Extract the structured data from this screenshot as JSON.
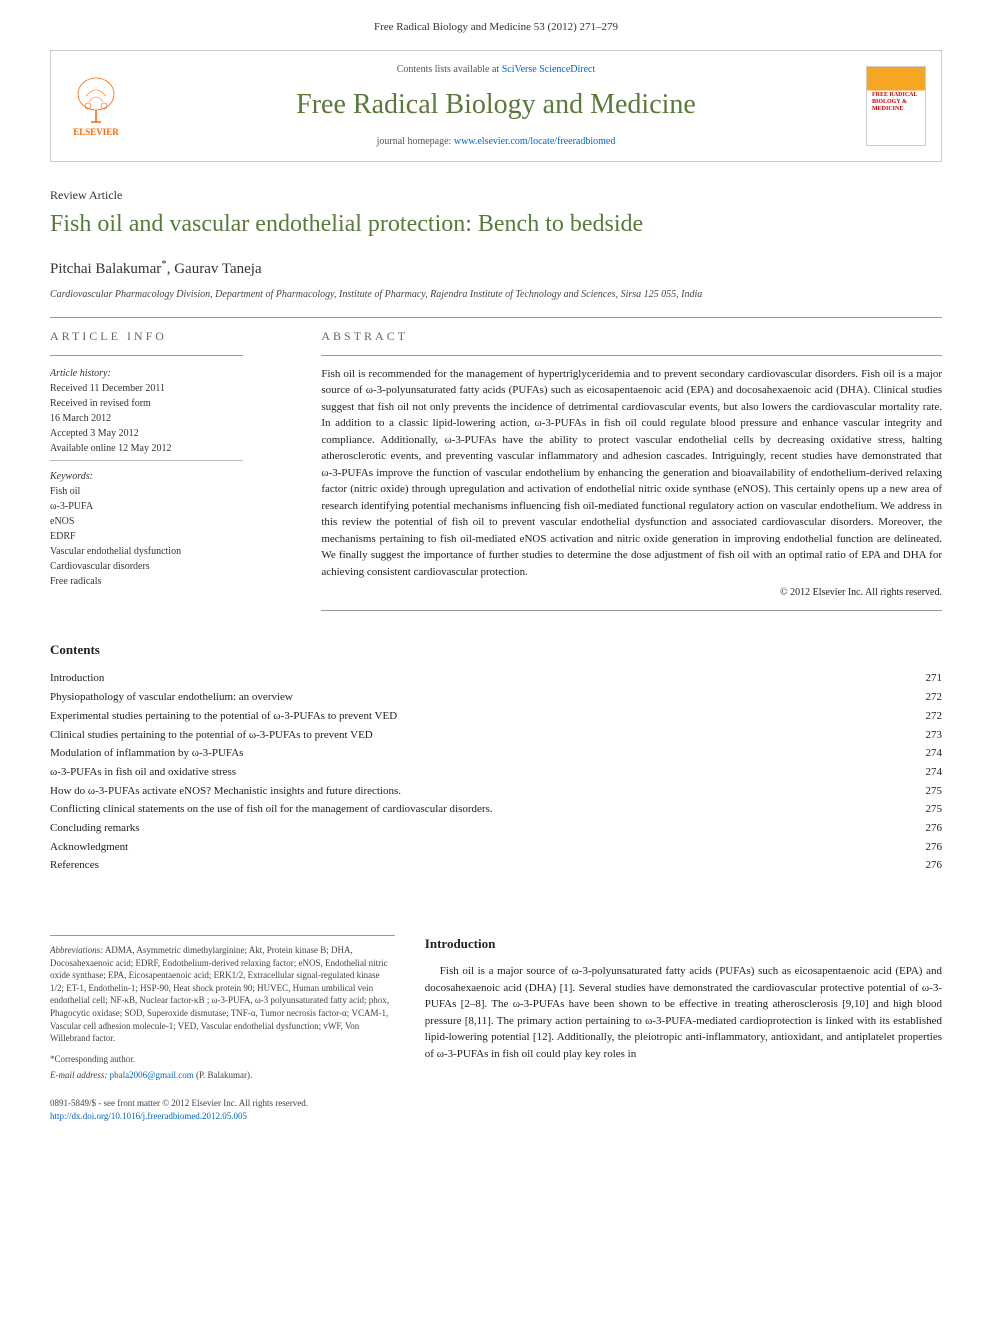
{
  "header": {
    "citation": "Free Radical Biology and Medicine 53 (2012) 271–279"
  },
  "banner": {
    "elsevier_label": "ELSEVIER",
    "contents_available": "Contents lists available at",
    "scidirect": "SciVerse ScienceDirect",
    "journal_name": "Free Radical Biology and Medicine",
    "homepage_label": "journal homepage:",
    "homepage_url": "www.elsevier.com/locate/freeradbiomed",
    "cover_text": "FREE RADICAL BIOLOGY & MEDICINE"
  },
  "article": {
    "type": "Review Article",
    "title": "Fish oil and vascular endothelial protection: Bench to bedside",
    "authors": "Pitchai Balakumar",
    "author_suffix": "*",
    "author2": ", Gaurav Taneja",
    "affiliation": "Cardiovascular Pharmacology Division, Department of Pharmacology, Institute of Pharmacy, Rajendra Institute of Technology and Sciences, Sirsa 125 055, India"
  },
  "info": {
    "heading": "ARTICLE INFO",
    "history_label": "Article history:",
    "received": "Received 11 December 2011",
    "revised": "Received in revised form",
    "revised_date": "16 March 2012",
    "accepted": "Accepted 3 May 2012",
    "online": "Available online 12 May 2012",
    "keywords_label": "Keywords:",
    "keywords": [
      "Fish oil",
      "ω-3-PUFA",
      "eNOS",
      "EDRF",
      "Vascular endothelial dysfunction",
      "Cardiovascular disorders",
      "Free radicals"
    ]
  },
  "abstract": {
    "heading": "ABSTRACT",
    "text": "Fish oil is recommended for the management of hypertriglyceridemia and to prevent secondary cardiovascular disorders. Fish oil is a major source of ω-3-polyunsaturated fatty acids (PUFAs) such as eicosapentaenoic acid (EPA) and docosahexaenoic acid (DHA). Clinical studies suggest that fish oil not only prevents the incidence of detrimental cardiovascular events, but also lowers the cardiovascular mortality rate. In addition to a classic lipid-lowering action, ω-3-PUFAs in fish oil could regulate blood pressure and enhance vascular integrity and compliance. Additionally, ω-3-PUFAs have the ability to protect vascular endothelial cells by decreasing oxidative stress, halting atherosclerotic events, and preventing vascular inflammatory and adhesion cascades. Intriguingly, recent studies have demonstrated that ω-3-PUFAs improve the function of vascular endothelium by enhancing the generation and bioavailability of endothelium-derived relaxing factor (nitric oxide) through upregulation and activation of endothelial nitric oxide synthase (eNOS). This certainly opens up a new area of research identifying potential mechanisms influencing fish oil-mediated functional regulatory action on vascular endothelium. We address in this review the potential of fish oil to prevent vascular endothelial dysfunction and associated cardiovascular disorders. Moreover, the mechanisms pertaining to fish oil-mediated eNOS activation and nitric oxide generation in improving endothelial function are delineated. We finally suggest the importance of further studies to determine the dose adjustment of fish oil with an optimal ratio of EPA and DHA for achieving consistent cardiovascular protection.",
    "copyright": "© 2012 Elsevier Inc. All rights reserved."
  },
  "contents": {
    "heading": "Contents",
    "items": [
      {
        "title": "Introduction",
        "page": "271"
      },
      {
        "title": "Physiopathology of vascular endothelium: an overview",
        "page": "272"
      },
      {
        "title": "Experimental studies pertaining to the potential of ω-3-PUFAs to prevent VED",
        "page": "272"
      },
      {
        "title": "Clinical studies pertaining to the potential of ω-3-PUFAs to prevent VED",
        "page": "273"
      },
      {
        "title": "Modulation of inflammation by ω-3-PUFAs",
        "page": "274"
      },
      {
        "title": "ω-3-PUFAs in fish oil and oxidative stress",
        "page": "274"
      },
      {
        "title": "How do ω-3-PUFAs activate eNOS? Mechanistic insights and future directions.",
        "page": "275"
      },
      {
        "title": "Conflicting clinical statements on the use of fish oil for the management of cardiovascular disorders.",
        "page": "275"
      },
      {
        "title": "Concluding remarks",
        "page": "276"
      },
      {
        "title": "Acknowledgment",
        "page": "276"
      },
      {
        "title": "References",
        "page": "276"
      }
    ]
  },
  "abbreviations": {
    "label": "Abbreviations:",
    "text": "ADMA, Asymmetric dimethylarginine; Akt, Protein kinase B; DHA, Docosahexaenoic acid; EDRF, Endothelium-derived relaxing factor; eNOS, Endothelial nitric oxide synthase; EPA, Eicosapentaenoic acid; ERK1/2, Extracellular signal-regulated kinase 1/2; ET-1, Endothelin-1; HSP-90, Heat shock protein 90; HUVEC, Human umbilical vein endothelial cell; NF-κB, Nuclear factor-κB ; ω-3-PUFA, ω-3 polyunsaturated fatty acid; phox, Phagocytic oxidase; SOD, Superoxide dismutase; TNF-α, Tumor necrosis factor-α; VCAM-1, Vascular cell adhesion molecule-1; VED, Vascular endothelial dysfunction; vWF, Von Willebrand factor.",
    "corresponding": "*Corresponding author.",
    "email_label": "E-mail address:",
    "email": "pbala2006@gmail.com",
    "email_name": "(P. Balakumar)."
  },
  "intro": {
    "heading": "Introduction",
    "text": "Fish oil is a major source of ω-3-polyunsaturated fatty acids (PUFAs) such as eicosapentaenoic acid (EPA) and docosahexaenoic acid (DHA) [1]. Several studies have demonstrated the cardiovascular protective potential of ω-3-PUFAs [2–8]. The ω-3-PUFAs have been shown to be effective in treating atherosclerosis [9,10] and high blood pressure [8,11]. The primary action pertaining to ω-3-PUFA-mediated cardioprotection is linked with its established lipid-lowering potential [12]. Additionally, the pleiotropic anti-inflammatory, antioxidant, and antiplatelet properties of ω-3-PUFAs in fish oil could play key roles in"
  },
  "footer": {
    "issn": "0891-5849/$ - see front matter © 2012 Elsevier Inc. All rights reserved.",
    "doi": "http://dx.doi.org/10.1016/j.freeradbiomed.2012.05.005"
  },
  "colors": {
    "green": "#5a7a3a",
    "orange": "#ff6600",
    "link": "#0066cc",
    "text": "#222222",
    "light_border": "#cccccc"
  }
}
